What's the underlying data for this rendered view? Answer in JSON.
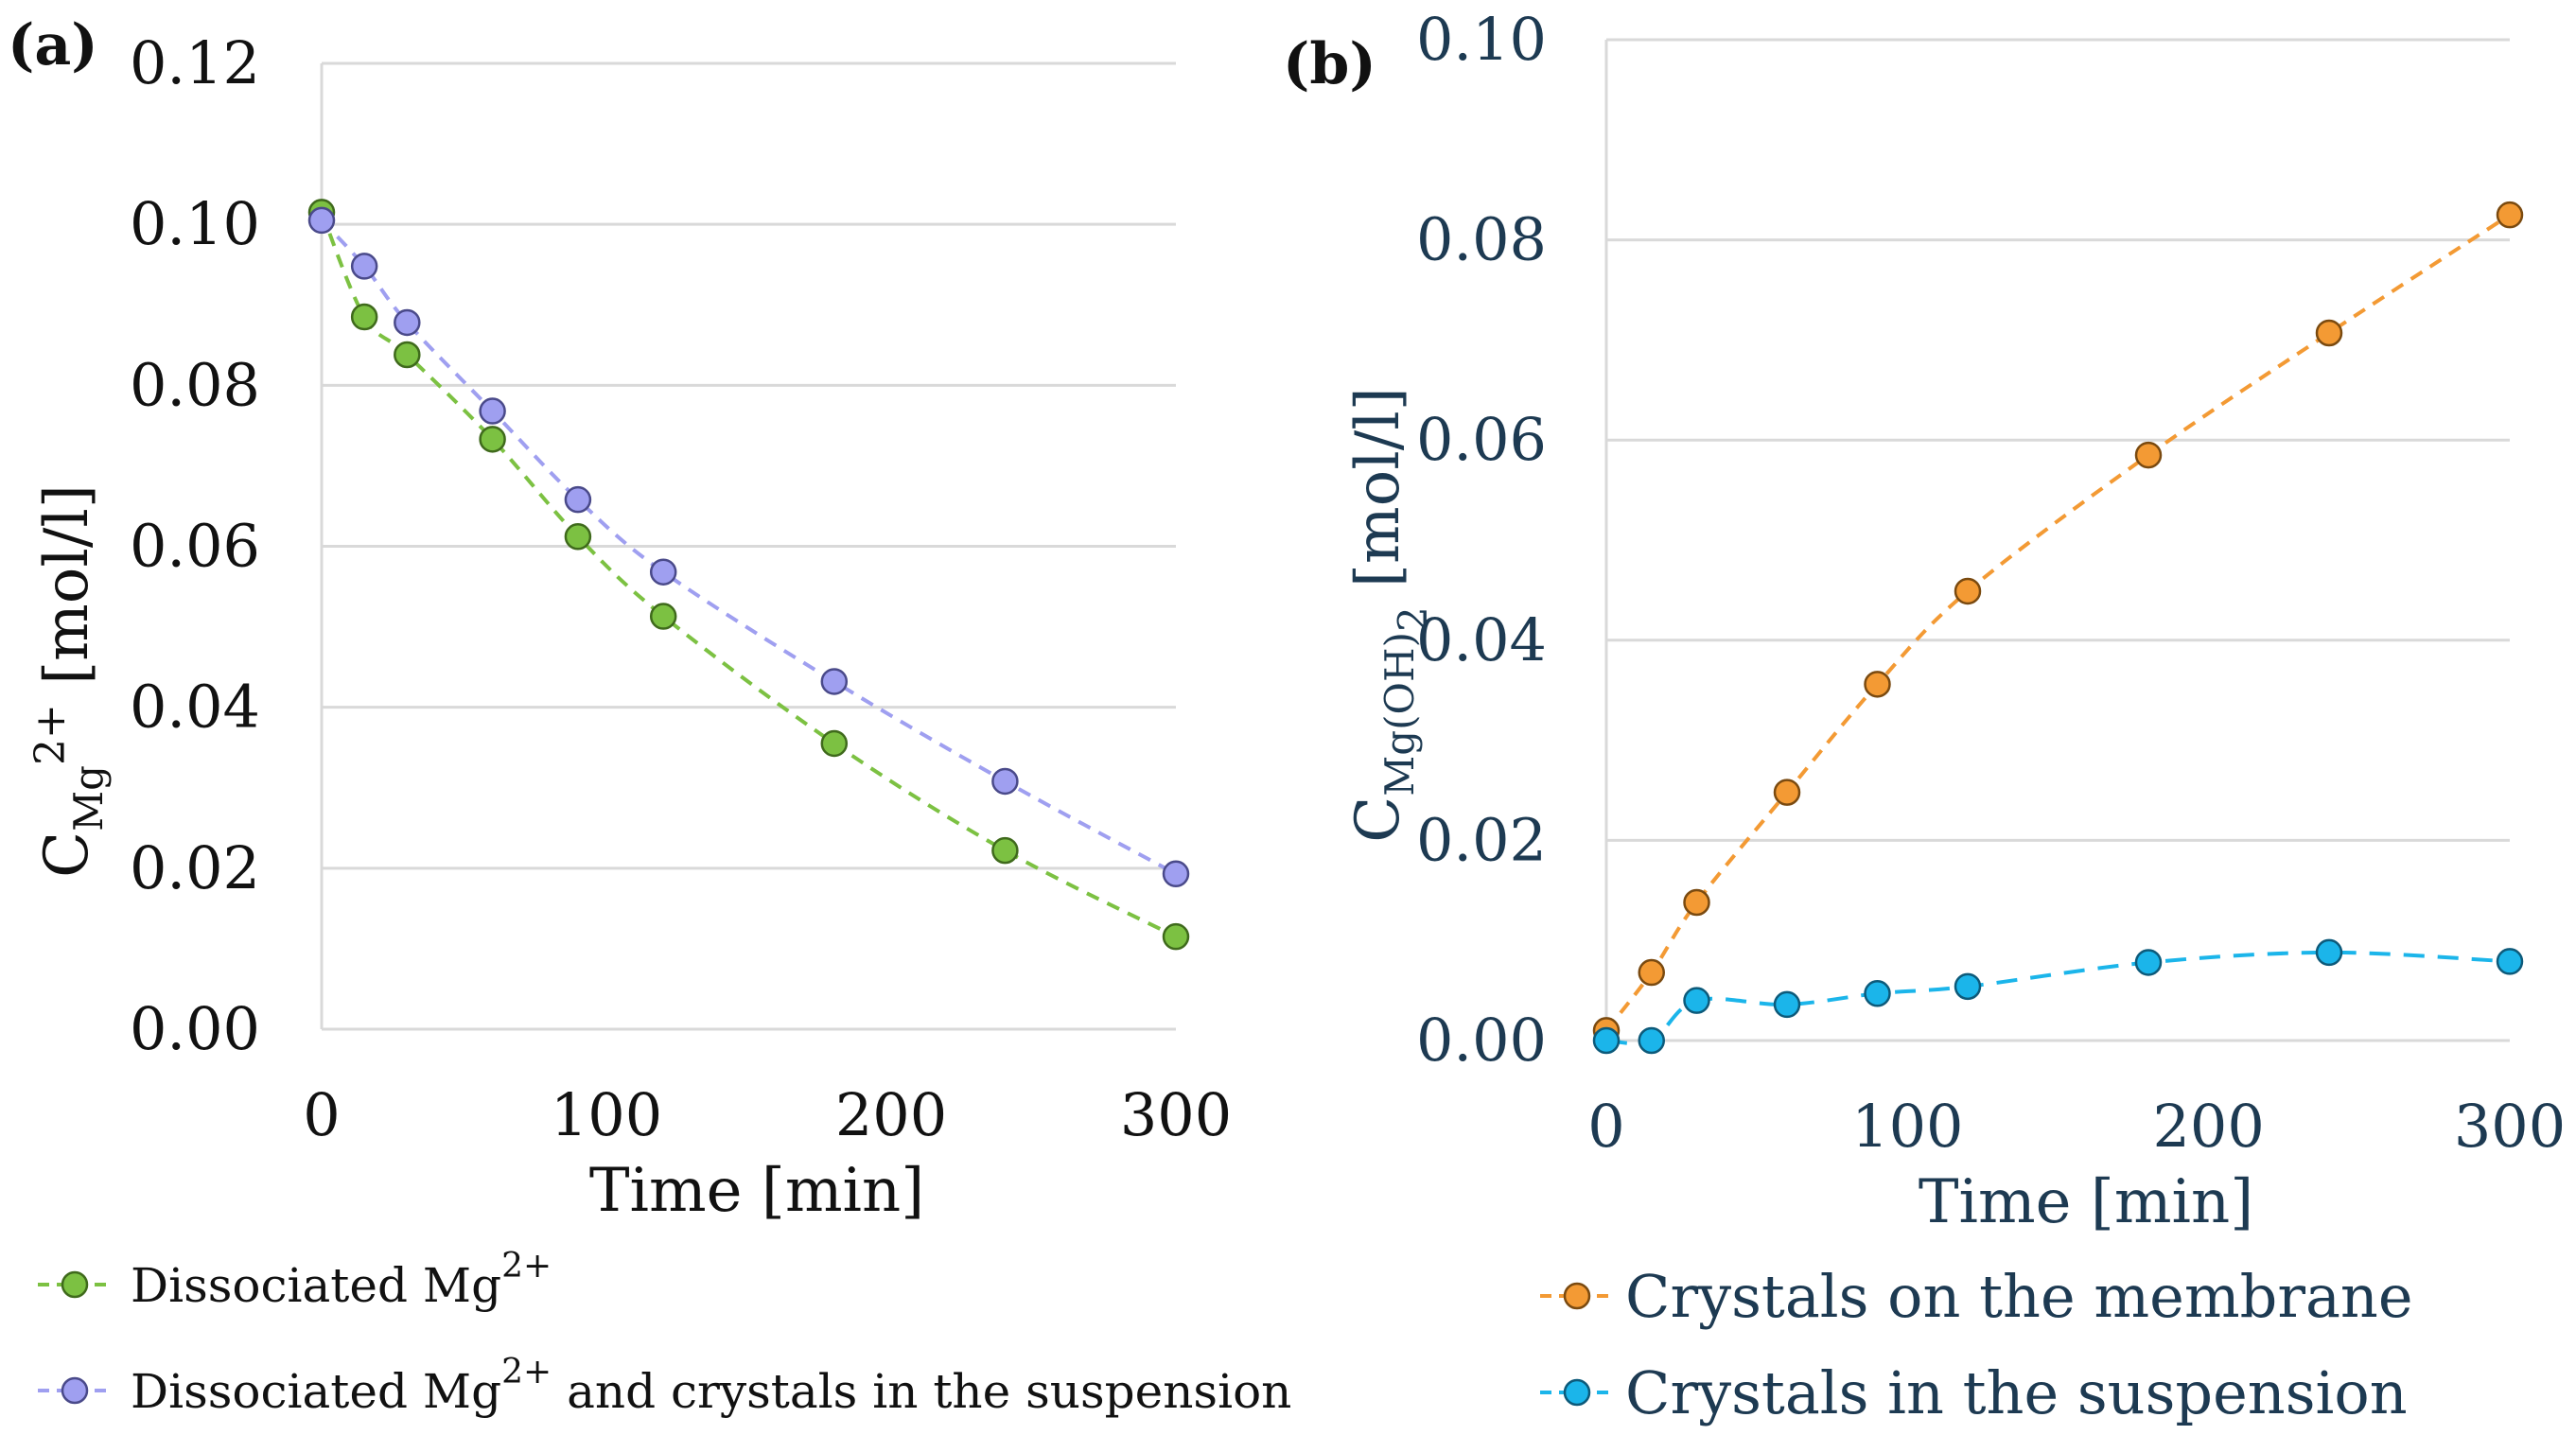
{
  "chart_data": [
    {
      "type": "scatter",
      "panel_label": "(a)",
      "xlabel": "Time [min]",
      "ylabel": {
        "base": "C",
        "sub": "Mg",
        "sup": "2+",
        "unit": " [mol/l]"
      },
      "xlim": [
        0,
        300
      ],
      "ylim": [
        0,
        0.12
      ],
      "x_ticks": [
        "0",
        "100",
        "200",
        "300"
      ],
      "y_ticks": [
        "0.00",
        "0.02",
        "0.04",
        "0.06",
        "0.08",
        "0.10",
        "0.12"
      ],
      "grid": "horizontal",
      "legend_position": "bottom",
      "series": [
        {
          "name": "Dissociated Mg2+",
          "legend_text": "Dissociated Mg",
          "legend_sup": "2+",
          "legend_suffix": "",
          "color": "#7cc142",
          "edge": "#3f6a1c",
          "x": [
            0,
            15,
            30,
            60,
            90,
            120,
            180,
            240,
            300
          ],
          "y": [
            0.1015,
            0.0885,
            0.0838,
            0.0733,
            0.0612,
            0.0513,
            0.0355,
            0.0222,
            0.0115
          ]
        },
        {
          "name": "Dissociated Mg2+ and crystals in the suspension",
          "legend_text": "Dissociated Mg",
          "legend_sup": "2+",
          "legend_suffix": " and crystals in the suspension",
          "color": "#9f9ff0",
          "edge": "#4a4a8a",
          "x": [
            0,
            15,
            30,
            60,
            90,
            120,
            180,
            240,
            300
          ],
          "y": [
            0.1005,
            0.0948,
            0.0878,
            0.0768,
            0.0658,
            0.0568,
            0.0432,
            0.0308,
            0.0193
          ]
        }
      ]
    },
    {
      "type": "scatter",
      "panel_label": "(b)",
      "xlabel": "Time [min]",
      "ylabel": {
        "base": "C",
        "sub": "Mg(OH)",
        "sub2": "2",
        "unit": " [mol/l]"
      },
      "xlim": [
        0,
        300
      ],
      "ylim": [
        0,
        0.1
      ],
      "x_ticks": [
        "0",
        "100",
        "200",
        "300"
      ],
      "y_ticks": [
        "0.00",
        "0.02",
        "0.04",
        "0.06",
        "0.08",
        "0.10"
      ],
      "grid": "horizontal",
      "legend_position": "bottom",
      "series": [
        {
          "name": "Crystals on the membrane",
          "legend_text": "Crystals on the membrane",
          "color": "#f39a34",
          "edge": "#7a4a10",
          "x": [
            0,
            15,
            30,
            60,
            90,
            120,
            180,
            240,
            300
          ],
          "y": [
            0.001,
            0.0068,
            0.0138,
            0.0248,
            0.0356,
            0.0449,
            0.0585,
            0.0707,
            0.0825
          ]
        },
        {
          "name": "Crystals in the suspension",
          "legend_text": "Crystals in the suspension",
          "color": "#1bb5ea",
          "edge": "#0d5a7a",
          "x": [
            0,
            15,
            30,
            60,
            90,
            120,
            180,
            240,
            300
          ],
          "y": [
            0.0,
            0.0,
            0.004,
            0.0036,
            0.0047,
            0.0054,
            0.0078,
            0.0088,
            0.0079
          ]
        }
      ]
    }
  ]
}
